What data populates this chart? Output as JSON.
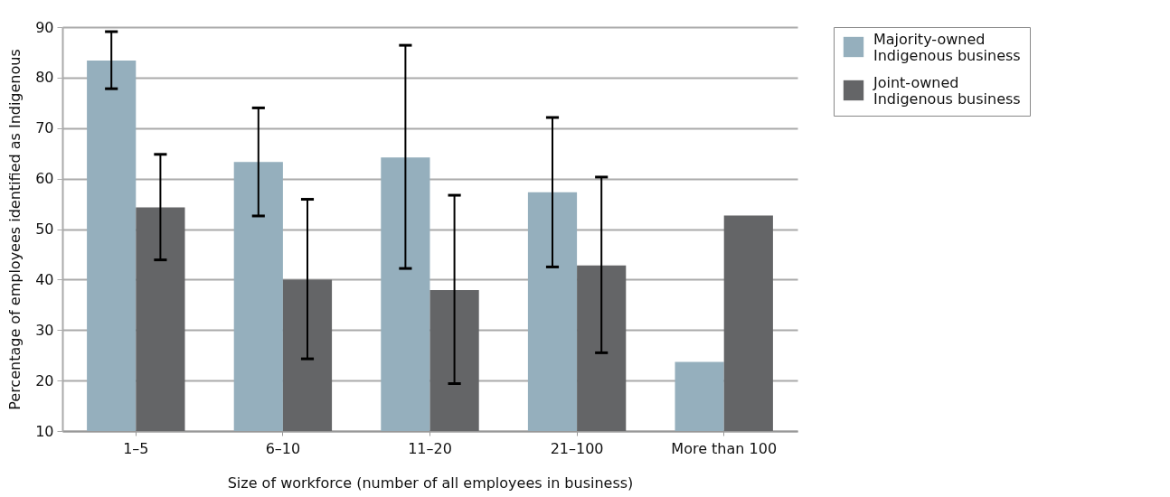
{
  "chart_data": {
    "type": "bar",
    "xlabel": "Size of workforce (number of all employees in business)",
    "ylabel": "Percentage of employees identified as Indigenous",
    "categories": [
      "1–5",
      "6–10",
      "11–20",
      "21–100",
      "More than 100"
    ],
    "series": [
      {
        "name": "Majority-owned Indigenous business",
        "color": "#95afbd",
        "values": [
          83.4,
          63.3,
          64.2,
          57.3,
          23.7
        ],
        "errors": [
          [
            77.8,
            89.1
          ],
          [
            52.6,
            74.0
          ],
          [
            42.2,
            86.4
          ],
          [
            42.5,
            72.1
          ],
          null
        ]
      },
      {
        "name": "Joint-owned Indigenous business",
        "color": "#646567",
        "values": [
          54.3,
          40.0,
          37.9,
          42.8,
          52.7
        ],
        "errors": [
          [
            43.9,
            64.8
          ],
          [
            24.3,
            55.9
          ],
          [
            19.4,
            56.7
          ],
          [
            25.5,
            60.3
          ],
          null
        ]
      }
    ],
    "ylim": [
      10,
      90
    ],
    "yticks": [
      10,
      20,
      30,
      40,
      50,
      60,
      70,
      80,
      90
    ],
    "grid": "y",
    "legend": "top right"
  }
}
